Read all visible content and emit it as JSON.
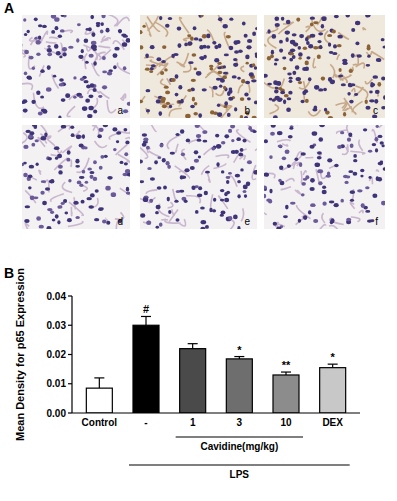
{
  "panel_a": {
    "label": "A",
    "images": [
      "a",
      "b",
      "c",
      "d",
      "e",
      "f"
    ]
  },
  "chart_data": {
    "type": "bar",
    "panel_label": "B",
    "ylabel": "Mean Density for p65 Expression",
    "categories": [
      "Control",
      "-",
      "1",
      "3",
      "10",
      "DEX"
    ],
    "values": [
      0.0085,
      0.03,
      0.022,
      0.0185,
      0.013,
      0.0155
    ],
    "errors": [
      0.0035,
      0.003,
      0.0017,
      0.0008,
      0.001,
      0.0012
    ],
    "significance": [
      null,
      "#",
      null,
      "*",
      "**",
      "*"
    ],
    "colors": [
      "#ffffff",
      "#000000",
      "#4a4a4a",
      "#6e6e6e",
      "#8c8c8c",
      "#c8c8c8"
    ],
    "ylim": [
      0,
      0.04
    ],
    "yticks": [
      {
        "value": 0,
        "label": "0.00"
      },
      {
        "value": 0.01,
        "label": "0.01"
      },
      {
        "value": 0.02,
        "label": "0.02"
      },
      {
        "value": 0.03,
        "label": "0.03"
      },
      {
        "value": 0.04,
        "label": "0.04"
      }
    ],
    "group_labels": [
      {
        "text": "Cavidine(mg/kg)",
        "from": 2,
        "to": 4
      },
      {
        "text": "LPS",
        "from": 1,
        "to": 5
      }
    ]
  }
}
